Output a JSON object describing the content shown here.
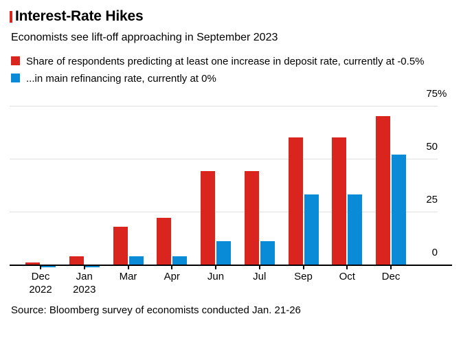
{
  "chart_data": {
    "type": "bar",
    "title": "Interest-Rate Hikes",
    "subtitle": "Economists see lift-off approaching in September 2023",
    "source": "Source: Bloomberg survey of economists conducted Jan. 21-26",
    "categories": [
      [
        "Dec",
        "2022"
      ],
      [
        "Jan",
        "2023"
      ],
      [
        "Mar"
      ],
      [
        "Apr"
      ],
      [
        "Jun"
      ],
      [
        "Jul"
      ],
      [
        "Sep"
      ],
      [
        "Oct"
      ],
      [
        "Dec"
      ]
    ],
    "series": [
      {
        "name": "Share of respondents predicting at least one increase in deposit rate, currently at -0.5%",
        "color": "#da251f",
        "values": [
          1,
          4,
          18,
          22,
          44,
          44,
          60,
          60,
          70
        ]
      },
      {
        "name": "...in main refinancing rate, currently at 0%",
        "color": "#0a8bd8",
        "values": [
          0,
          0,
          4,
          4,
          11,
          11,
          33,
          33,
          52
        ]
      }
    ],
    "ylim": [
      0,
      75
    ],
    "yticks": [
      {
        "value": 0,
        "label": "0"
      },
      {
        "value": 25,
        "label": "25"
      },
      {
        "value": 50,
        "label": "50"
      },
      {
        "value": 75,
        "label": "75%"
      }
    ],
    "grid": true,
    "legend_position": "top",
    "colors": {
      "accent_red": "#da251f",
      "accent_blue": "#0a8bd8",
      "gridline": "#e0e0e0",
      "axis": "#000000"
    }
  }
}
